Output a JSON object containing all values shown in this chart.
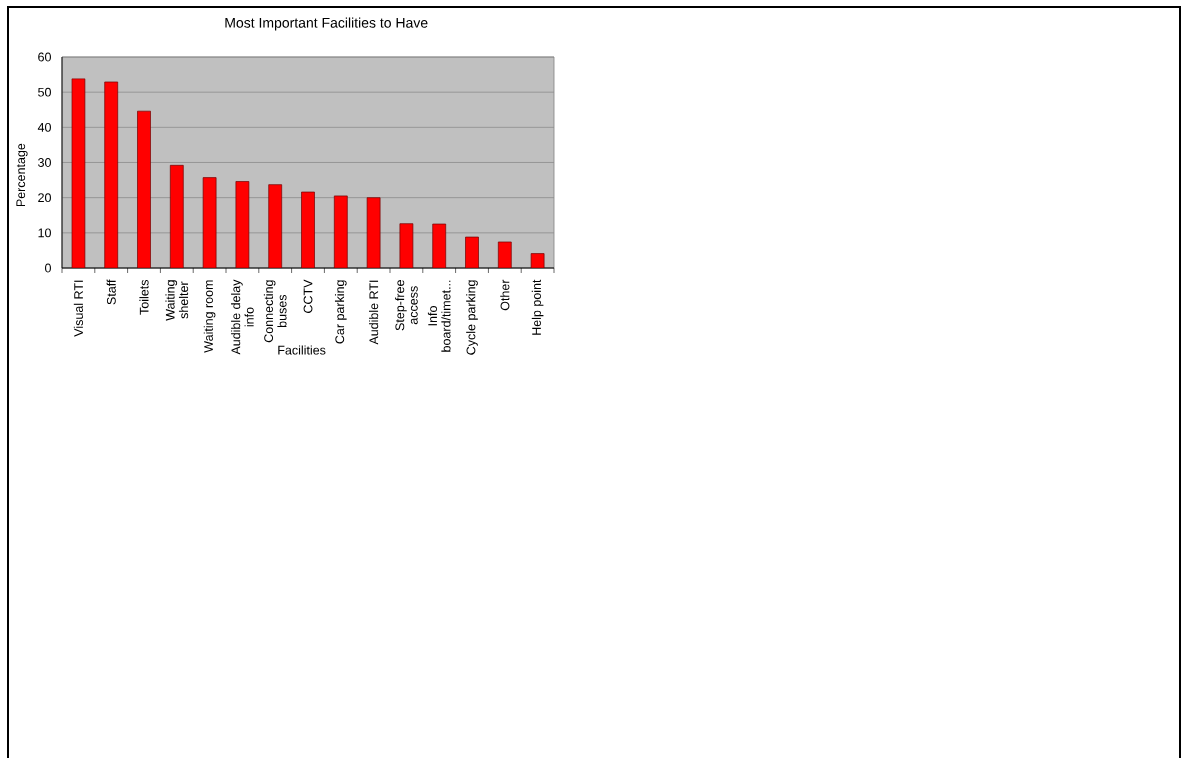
{
  "chart_data": {
    "type": "bar",
    "title": "Most Important Facilities to Have",
    "xlabel": "Facilities",
    "ylabel": "Percentage",
    "categories": [
      "Visual RTI",
      "Staff",
      "Toilets",
      "Waiting shelter",
      "Waiting room",
      "Audible delay info",
      "Connecting buses",
      "CCTV",
      "Car parking",
      "Audible RTI",
      "Step-free access",
      "Info board/timet...",
      "Cycle parking",
      "Other",
      "Help point"
    ],
    "values": [
      53.8,
      52.9,
      44.6,
      29.2,
      25.7,
      24.6,
      23.7,
      21.6,
      20.5,
      20.0,
      12.6,
      12.5,
      8.8,
      7.4,
      4.1
    ],
    "color": "#ff0000",
    "ylim": [
      0,
      60
    ],
    "yticks": [
      0,
      10,
      20,
      30,
      40,
      50,
      60
    ],
    "grid": "y"
  }
}
